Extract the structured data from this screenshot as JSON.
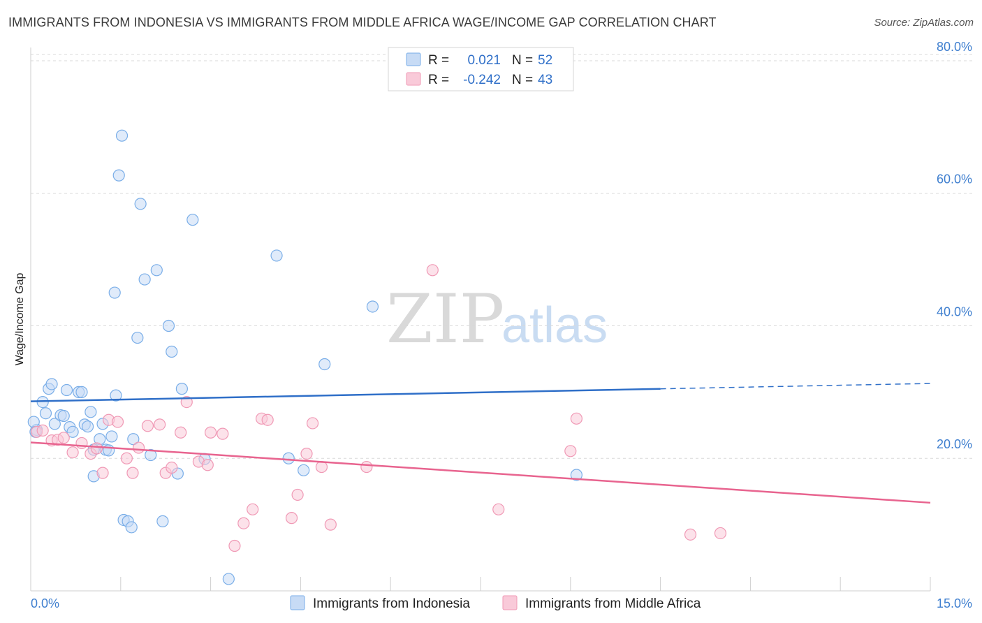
{
  "title": "IMMIGRANTS FROM INDONESIA VS IMMIGRANTS FROM MIDDLE AFRICA WAGE/INCOME GAP CORRELATION CHART",
  "source": "Source: ZipAtlas.com",
  "watermark": {
    "zip": "ZIP",
    "atlas": "atlas"
  },
  "legend": {
    "rows": [
      {
        "r_label": "R =",
        "r_value": "0.021",
        "n_label": "N =",
        "n_value": "52"
      },
      {
        "r_label": "R =",
        "r_value": "-0.242",
        "n_label": "N =",
        "n_value": "43"
      }
    ]
  },
  "chart_data": {
    "type": "scatter",
    "title": "IMMIGRANTS FROM INDONESIA VS IMMIGRANTS FROM MIDDLE AFRICA WAGE/INCOME GAP CORRELATION CHART",
    "xlabel": "",
    "ylabel": "Wage/Income Gap",
    "xlim": [
      0,
      15
    ],
    "ylim": [
      0,
      82
    ],
    "x_tick_labels": [
      "0.0%",
      "15.0%"
    ],
    "y_ticks": [
      20,
      40,
      60,
      80
    ],
    "y_tick_labels": [
      "20.0%",
      "40.0%",
      "60.0%",
      "80.0%"
    ],
    "grid": true,
    "legend_position": "top-center",
    "series": [
      {
        "name": "Immigrants from Indonesia",
        "color": "#7aaee8",
        "fill": "#c7dbf5",
        "line_color": "#2f6fc8",
        "stats": {
          "R": 0.021,
          "N": 52
        },
        "trend": {
          "x": [
            0,
            15
          ],
          "y": [
            28.6,
            31.3
          ],
          "solid_until_x": 10.5
        },
        "points": [
          [
            0.1,
            24.3
          ],
          [
            0.2,
            28.5
          ],
          [
            0.25,
            26.8
          ],
          [
            0.3,
            30.5
          ],
          [
            0.35,
            31.2
          ],
          [
            0.4,
            25.2
          ],
          [
            0.5,
            26.5
          ],
          [
            0.55,
            26.4
          ],
          [
            0.6,
            30.3
          ],
          [
            0.65,
            24.7
          ],
          [
            0.7,
            24.0
          ],
          [
            0.8,
            30.0
          ],
          [
            0.85,
            30.0
          ],
          [
            0.9,
            25.1
          ],
          [
            0.95,
            24.8
          ],
          [
            1.0,
            27.0
          ],
          [
            1.05,
            21.3
          ],
          [
            1.05,
            17.3
          ],
          [
            1.15,
            22.9
          ],
          [
            1.2,
            25.2
          ],
          [
            1.25,
            21.3
          ],
          [
            1.3,
            21.2
          ],
          [
            1.35,
            23.3
          ],
          [
            1.4,
            45.0
          ],
          [
            1.42,
            29.5
          ],
          [
            1.47,
            62.7
          ],
          [
            1.52,
            68.7
          ],
          [
            1.55,
            10.7
          ],
          [
            1.62,
            10.5
          ],
          [
            1.68,
            9.6
          ],
          [
            1.71,
            22.9
          ],
          [
            1.78,
            38.2
          ],
          [
            1.83,
            58.4
          ],
          [
            1.9,
            47.0
          ],
          [
            2.0,
            20.5
          ],
          [
            2.1,
            48.4
          ],
          [
            2.2,
            10.5
          ],
          [
            2.3,
            40.0
          ],
          [
            2.35,
            36.1
          ],
          [
            2.45,
            17.7
          ],
          [
            2.52,
            30.5
          ],
          [
            2.7,
            56.0
          ],
          [
            2.9,
            19.9
          ],
          [
            3.3,
            1.8
          ],
          [
            4.1,
            50.6
          ],
          [
            4.3,
            20.0
          ],
          [
            4.55,
            18.2
          ],
          [
            4.9,
            34.2
          ],
          [
            5.7,
            42.9
          ],
          [
            9.1,
            17.5
          ],
          [
            0.05,
            25.5
          ],
          [
            0.08,
            24.0
          ]
        ]
      },
      {
        "name": "Immigrants from Middle Africa",
        "color": "#f099b5",
        "fill": "#f9cad9",
        "line_color": "#e8648f",
        "stats": {
          "R": -0.242,
          "N": 43
        },
        "trend": {
          "x": [
            0,
            15
          ],
          "y": [
            22.4,
            13.3
          ]
        },
        "points": [
          [
            0.1,
            24.0
          ],
          [
            0.2,
            24.2
          ],
          [
            0.35,
            22.7
          ],
          [
            0.45,
            22.8
          ],
          [
            0.55,
            23.1
          ],
          [
            0.7,
            20.9
          ],
          [
            0.85,
            22.3
          ],
          [
            1.0,
            20.7
          ],
          [
            1.1,
            21.5
          ],
          [
            1.2,
            17.8
          ],
          [
            1.3,
            25.8
          ],
          [
            1.45,
            25.5
          ],
          [
            1.6,
            20.0
          ],
          [
            1.7,
            17.8
          ],
          [
            1.8,
            21.6
          ],
          [
            1.95,
            24.9
          ],
          [
            2.15,
            25.1
          ],
          [
            2.25,
            17.8
          ],
          [
            2.35,
            18.6
          ],
          [
            2.5,
            23.9
          ],
          [
            2.6,
            28.5
          ],
          [
            2.8,
            19.5
          ],
          [
            2.95,
            19.0
          ],
          [
            3.0,
            23.9
          ],
          [
            3.2,
            23.7
          ],
          [
            3.4,
            6.8
          ],
          [
            3.55,
            10.2
          ],
          [
            3.7,
            12.3
          ],
          [
            3.85,
            26.0
          ],
          [
            3.95,
            25.8
          ],
          [
            4.35,
            11.0
          ],
          [
            4.45,
            14.5
          ],
          [
            4.6,
            20.7
          ],
          [
            4.7,
            25.3
          ],
          [
            4.85,
            18.7
          ],
          [
            5.0,
            10.0
          ],
          [
            5.6,
            18.7
          ],
          [
            6.7,
            48.4
          ],
          [
            7.8,
            12.3
          ],
          [
            9.0,
            21.1
          ],
          [
            9.1,
            26.0
          ],
          [
            11.0,
            8.5
          ],
          [
            11.5,
            8.7
          ]
        ]
      }
    ]
  },
  "bottom_legend": [
    {
      "label": "Immigrants from Indonesia"
    },
    {
      "label": "Immigrants from Middle Africa"
    }
  ]
}
